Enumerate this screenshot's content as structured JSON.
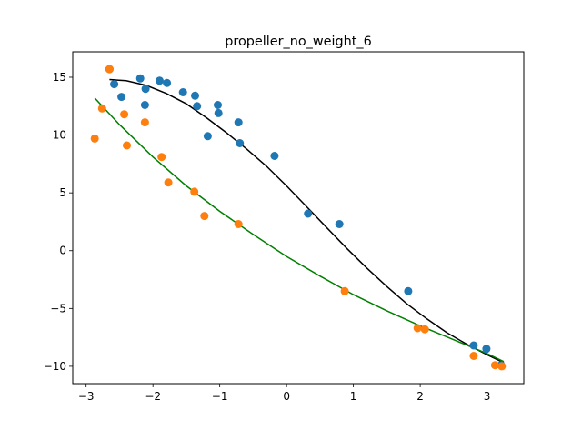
{
  "chart_data": {
    "type": "scatter",
    "title": "propeller_no_weight_6",
    "xlabel": "",
    "ylabel": "",
    "xlim": [
      -3.2,
      3.55
    ],
    "ylim": [
      -11.5,
      17.2
    ],
    "x_ticks": [
      -3,
      -2,
      -1,
      0,
      1,
      2,
      3
    ],
    "x_tick_labels": [
      "−3",
      "−2",
      "−1",
      "0",
      "1",
      "2",
      "3"
    ],
    "y_ticks": [
      -10,
      -5,
      0,
      5,
      10,
      15
    ],
    "y_tick_labels": [
      "−10",
      "−5",
      "0",
      "5",
      "10",
      "15"
    ],
    "grid": false,
    "series": [
      {
        "kind": "scatter",
        "color": "#1f77b4",
        "points": [
          [
            -2.65,
            15.7
          ],
          [
            -2.58,
            14.4
          ],
          [
            -2.47,
            13.3
          ],
          [
            -2.19,
            14.9
          ],
          [
            -2.11,
            14.0
          ],
          [
            -2.12,
            12.6
          ],
          [
            -1.9,
            14.7
          ],
          [
            -1.79,
            14.5
          ],
          [
            -1.55,
            13.7
          ],
          [
            -1.37,
            13.4
          ],
          [
            -1.34,
            12.5
          ],
          [
            -1.18,
            9.9
          ],
          [
            -1.03,
            12.6
          ],
          [
            -1.02,
            11.9
          ],
          [
            -0.72,
            11.1
          ],
          [
            -0.7,
            9.3
          ],
          [
            -0.18,
            8.2
          ],
          [
            0.32,
            3.2
          ],
          [
            0.79,
            2.3
          ],
          [
            1.82,
            -3.5
          ],
          [
            2.8,
            -8.2
          ],
          [
            2.99,
            -8.5
          ],
          [
            3.21,
            -9.9
          ]
        ]
      },
      {
        "kind": "scatter",
        "color": "#ff7f0e",
        "points": [
          [
            -2.87,
            9.7
          ],
          [
            -2.76,
            12.3
          ],
          [
            -2.65,
            15.7
          ],
          [
            -2.43,
            11.8
          ],
          [
            -2.39,
            9.1
          ],
          [
            -2.12,
            11.1
          ],
          [
            -1.87,
            8.1
          ],
          [
            -1.77,
            5.9
          ],
          [
            -1.38,
            5.1
          ],
          [
            -1.23,
            3.0
          ],
          [
            -0.72,
            2.3
          ],
          [
            0.87,
            -3.5
          ],
          [
            1.96,
            -6.7
          ],
          [
            2.07,
            -6.8
          ],
          [
            2.8,
            -9.1
          ],
          [
            3.12,
            -9.9
          ],
          [
            3.22,
            -10.0
          ]
        ]
      },
      {
        "kind": "line",
        "color": "#000000",
        "points": [
          [
            -2.65,
            14.8
          ],
          [
            -2.4,
            14.7
          ],
          [
            -2.1,
            14.3
          ],
          [
            -1.8,
            13.6
          ],
          [
            -1.5,
            12.7
          ],
          [
            -1.2,
            11.5
          ],
          [
            -0.9,
            10.2
          ],
          [
            -0.6,
            8.8
          ],
          [
            -0.3,
            7.3
          ],
          [
            0.0,
            5.6
          ],
          [
            0.3,
            3.8
          ],
          [
            0.6,
            2.0
          ],
          [
            0.9,
            0.2
          ],
          [
            1.2,
            -1.5
          ],
          [
            1.5,
            -3.1
          ],
          [
            1.8,
            -4.6
          ],
          [
            2.1,
            -5.9
          ],
          [
            2.4,
            -7.1
          ],
          [
            2.7,
            -8.1
          ],
          [
            3.0,
            -9.0
          ],
          [
            3.25,
            -9.7
          ]
        ]
      },
      {
        "kind": "line",
        "color": "#008000",
        "points": [
          [
            -2.87,
            13.2
          ],
          [
            -2.5,
            10.9
          ],
          [
            -2.0,
            8.1
          ],
          [
            -1.5,
            5.6
          ],
          [
            -1.0,
            3.4
          ],
          [
            -0.5,
            1.4
          ],
          [
            0.0,
            -0.5
          ],
          [
            0.5,
            -2.2
          ],
          [
            1.0,
            -3.8
          ],
          [
            1.5,
            -5.2
          ],
          [
            2.0,
            -6.5
          ],
          [
            2.5,
            -7.7
          ],
          [
            3.0,
            -8.9
          ],
          [
            3.25,
            -9.6
          ]
        ]
      }
    ]
  }
}
